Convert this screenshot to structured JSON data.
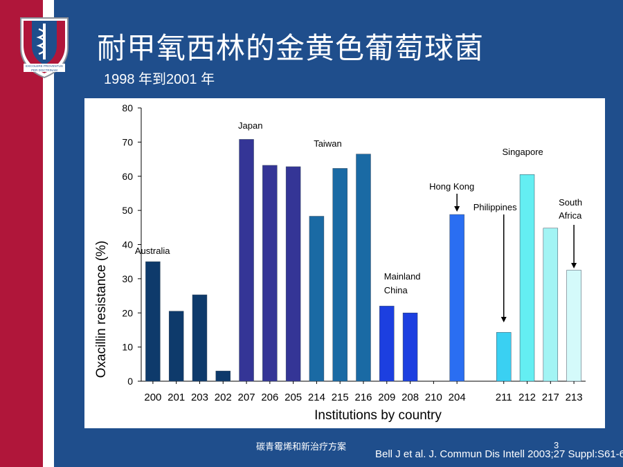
{
  "slide": {
    "title": "耐甲氧西林的金黄色葡萄球菌",
    "subtitle": "1998 年到2001 年",
    "footer_left": "碳青霉烯和新治疗方案",
    "footer_citation": "Bell J et al. J. Commun Dis Intell 2003;27 Suppl:S61-6",
    "page_number": "3",
    "logo_text_line1": "EXCOLERE PROVENTUS",
    "logo_text_line2": "PER DOCTRINAM"
  },
  "colors": {
    "background": "#1f4e8c",
    "left_band": "#b0163a"
  },
  "chart_data": {
    "type": "bar",
    "title": "",
    "xlabel": "Institutions by country",
    "ylabel": "Oxacillin resistance (%)",
    "ylim": [
      0,
      80
    ],
    "yticks": [
      0,
      10,
      20,
      30,
      40,
      50,
      60,
      70,
      80
    ],
    "categories": [
      "200",
      "201",
      "203",
      "202",
      "207",
      "206",
      "205",
      "214",
      "215",
      "216",
      "209",
      "208",
      "210",
      "204",
      "",
      "211",
      "212",
      "217",
      "213"
    ],
    "values": [
      35,
      20.5,
      25.3,
      3,
      70.8,
      63.2,
      62.8,
      48.3,
      62.3,
      66.5,
      22,
      20,
      null,
      48.8,
      null,
      14.3,
      60.5,
      44.8,
      32.5
    ],
    "bar_colors": [
      "#0e3a6b",
      "#0e3a6b",
      "#0e3a6b",
      "#0e3a6b",
      "#343596",
      "#343596",
      "#343596",
      "#1a6aa4",
      "#1a6aa4",
      "#1a6aa4",
      "#1c3fe0",
      "#1c3fe0",
      "#1c3fe0",
      "#2a6ef2",
      "",
      "#3ad0f2",
      "#64eef2",
      "#a2f4f4",
      "#d4fafa"
    ],
    "group_labels": [
      {
        "text": "Australia",
        "anchor_index": 0
      },
      {
        "text": "Japan",
        "anchor_index": 4
      },
      {
        "text": "Taiwan",
        "anchor_index": 8
      },
      {
        "text": "Mainland",
        "anchor_index": 10
      },
      {
        "text": "China",
        "anchor_index": 10
      },
      {
        "text": "Hong Kong",
        "anchor_index": 13
      },
      {
        "text": "Philippines",
        "anchor_index": 15
      },
      {
        "text": "Singapore",
        "anchor_index": 16
      },
      {
        "text": "South",
        "anchor_index": 18
      },
      {
        "text": "Africa",
        "anchor_index": 18
      }
    ]
  }
}
